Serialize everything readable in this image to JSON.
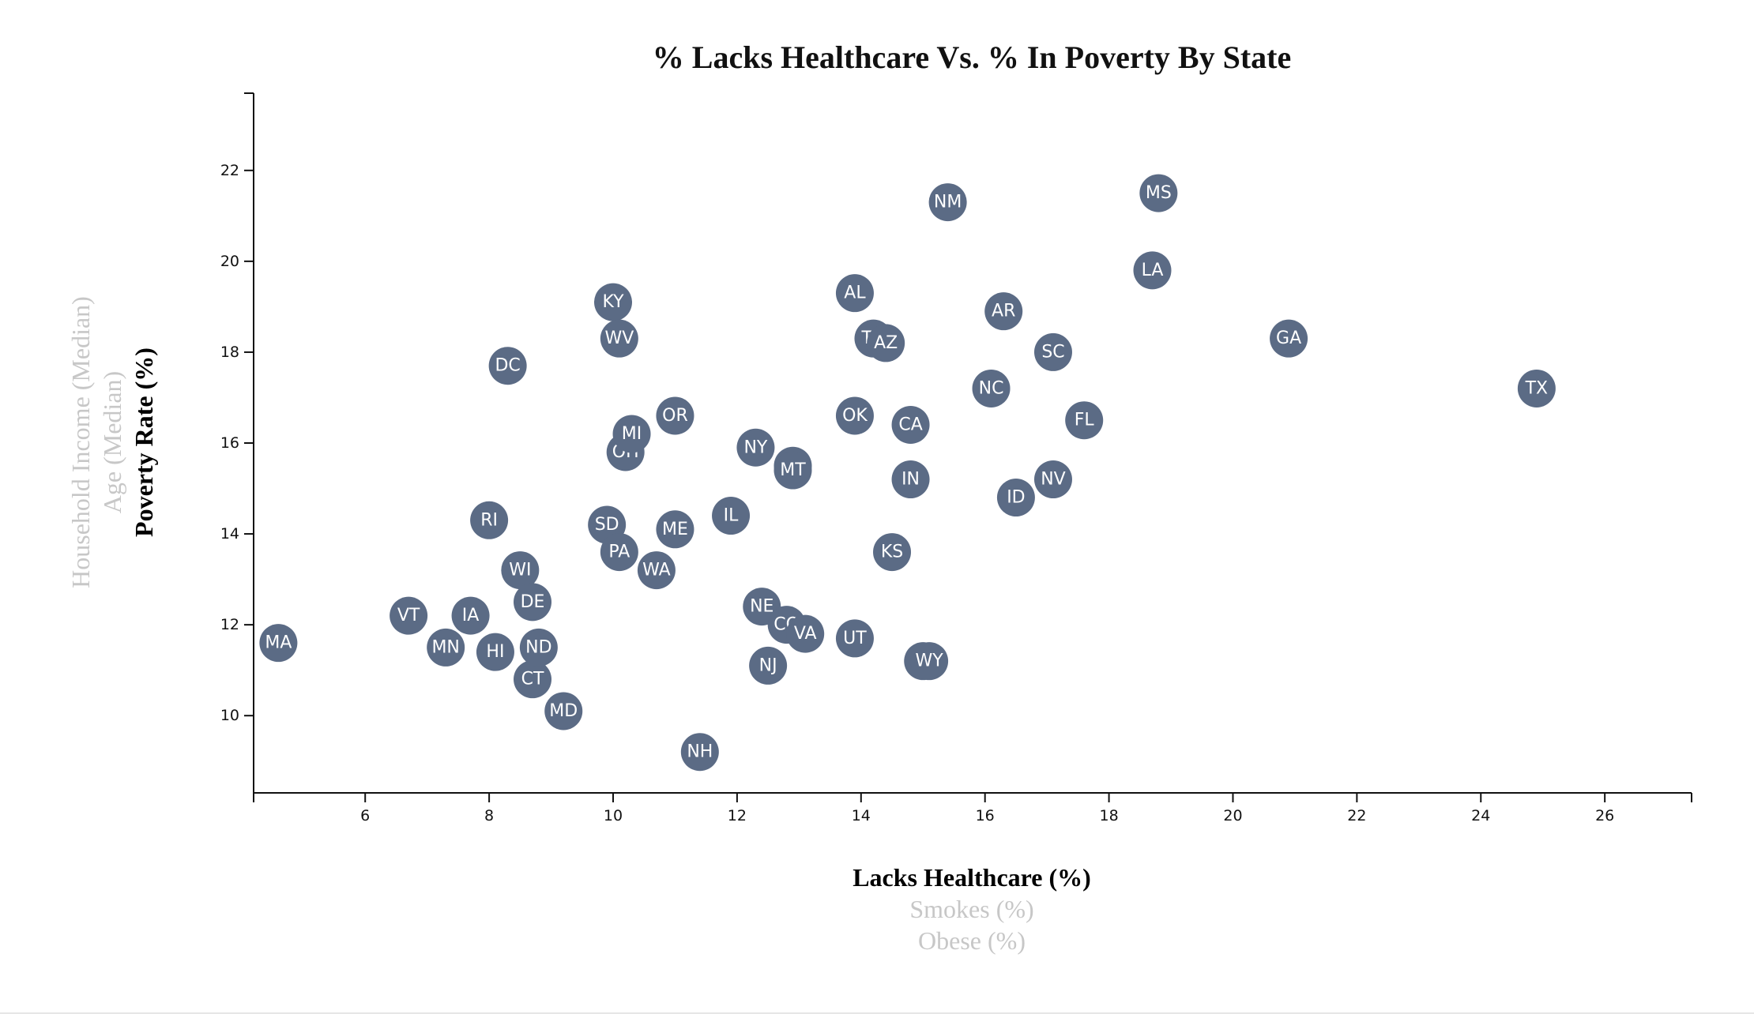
{
  "chart_data": {
    "type": "scatter",
    "title": "% Lacks Healthcare Vs. % In Poverty By State",
    "x_axis": {
      "active_label": "Lacks Healthcare (%)",
      "options": [
        "Lacks Healthcare (%)",
        "Smokes (%)",
        "Obese (%)"
      ],
      "range": [
        4.2,
        27.4
      ],
      "ticks": [
        6,
        8,
        10,
        12,
        14,
        16,
        18,
        20,
        22,
        24,
        26
      ]
    },
    "y_axis": {
      "active_label": "Poverty Rate (%)",
      "options": [
        "Household Income (Median)",
        "Age (Median)",
        "Poverty Rate (%)"
      ],
      "range": [
        8.3,
        23.7
      ],
      "ticks": [
        10,
        12,
        14,
        16,
        18,
        20,
        22
      ]
    },
    "colors": {
      "marker": "#5b6b85",
      "marker_text": "#ffffff",
      "axis": "#111111",
      "inactive_label": "#c7c7c7"
    },
    "points": [
      {
        "abbr": "MA",
        "x": 4.6,
        "y": 11.6
      },
      {
        "abbr": "VT",
        "x": 6.7,
        "y": 12.2
      },
      {
        "abbr": "MN",
        "x": 7.3,
        "y": 11.5
      },
      {
        "abbr": "IA",
        "x": 7.7,
        "y": 12.2
      },
      {
        "abbr": "RI",
        "x": 8.0,
        "y": 14.3
      },
      {
        "abbr": "HI",
        "x": 8.1,
        "y": 11.4
      },
      {
        "abbr": "DC",
        "x": 8.3,
        "y": 17.7
      },
      {
        "abbr": "WI",
        "x": 8.5,
        "y": 13.2
      },
      {
        "abbr": "DE",
        "x": 8.7,
        "y": 12.5
      },
      {
        "abbr": "CT",
        "x": 8.7,
        "y": 10.8
      },
      {
        "abbr": "ND",
        "x": 8.8,
        "y": 11.5
      },
      {
        "abbr": "MD",
        "x": 9.2,
        "y": 10.1
      },
      {
        "abbr": "SD",
        "x": 9.9,
        "y": 14.2
      },
      {
        "abbr": "KY",
        "x": 10.0,
        "y": 19.1
      },
      {
        "abbr": "PA",
        "x": 10.1,
        "y": 13.6
      },
      {
        "abbr": "WV",
        "x": 10.1,
        "y": 18.3
      },
      {
        "abbr": "OH",
        "x": 10.2,
        "y": 15.8
      },
      {
        "abbr": "MI",
        "x": 10.3,
        "y": 16.2
      },
      {
        "abbr": "WA",
        "x": 10.7,
        "y": 13.2
      },
      {
        "abbr": "OR",
        "x": 11.0,
        "y": 16.6
      },
      {
        "abbr": "ME",
        "x": 11.0,
        "y": 14.1
      },
      {
        "abbr": "NH",
        "x": 11.4,
        "y": 9.2
      },
      {
        "abbr": "IL",
        "x": 11.9,
        "y": 14.4
      },
      {
        "abbr": "NY",
        "x": 12.3,
        "y": 15.9
      },
      {
        "abbr": "NE",
        "x": 12.4,
        "y": 12.4
      },
      {
        "abbr": "NJ",
        "x": 12.5,
        "y": 11.1
      },
      {
        "abbr": "CO",
        "x": 12.8,
        "y": 12.0
      },
      {
        "abbr": "MO",
        "x": 12.9,
        "y": 15.5
      },
      {
        "abbr": "MT",
        "x": 12.9,
        "y": 15.4
      },
      {
        "abbr": "VA",
        "x": 13.1,
        "y": 11.8
      },
      {
        "abbr": "OK",
        "x": 13.9,
        "y": 16.6
      },
      {
        "abbr": "AL",
        "x": 13.9,
        "y": 19.3
      },
      {
        "abbr": "UT",
        "x": 13.9,
        "y": 11.7
      },
      {
        "abbr": "TN",
        "x": 14.2,
        "y": 18.3
      },
      {
        "abbr": "AZ",
        "x": 14.4,
        "y": 18.2
      },
      {
        "abbr": "KS",
        "x": 14.5,
        "y": 13.6
      },
      {
        "abbr": "CA",
        "x": 14.8,
        "y": 16.4
      },
      {
        "abbr": "IN",
        "x": 14.8,
        "y": 15.2
      },
      {
        "abbr": "AK",
        "x": 15.0,
        "y": 11.2
      },
      {
        "abbr": "WY",
        "x": 15.1,
        "y": 11.2
      },
      {
        "abbr": "NM",
        "x": 15.4,
        "y": 21.3
      },
      {
        "abbr": "NC",
        "x": 16.1,
        "y": 17.2
      },
      {
        "abbr": "AR",
        "x": 16.3,
        "y": 18.9
      },
      {
        "abbr": "ID",
        "x": 16.5,
        "y": 14.8
      },
      {
        "abbr": "NV",
        "x": 17.1,
        "y": 15.2
      },
      {
        "abbr": "SC",
        "x": 17.1,
        "y": 18.0
      },
      {
        "abbr": "FL",
        "x": 17.6,
        "y": 16.5
      },
      {
        "abbr": "LA",
        "x": 18.7,
        "y": 19.8
      },
      {
        "abbr": "MS",
        "x": 18.8,
        "y": 21.5
      },
      {
        "abbr": "GA",
        "x": 20.9,
        "y": 18.3
      },
      {
        "abbr": "TX",
        "x": 24.9,
        "y": 17.2
      }
    ]
  }
}
